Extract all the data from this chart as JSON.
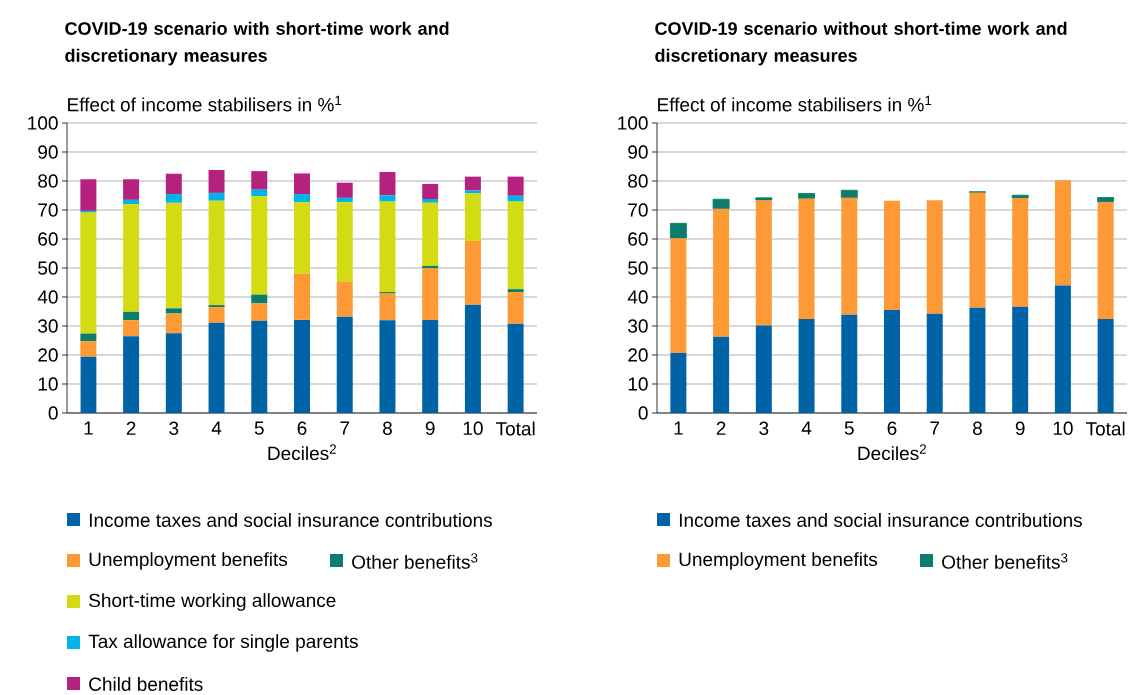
{
  "chart_data": [
    {
      "type": "bar",
      "stacked": true,
      "title": "COVID-19 scenario with short-time work and discretionary measures",
      "ylabel": "Effect of income stabilisers in %$^{1}$",
      "xlabel": "Deciles$^{2}$",
      "categories": [
        "1",
        "2",
        "3",
        "4",
        "5",
        "6",
        "7",
        "8",
        "9",
        "10",
        "Total"
      ],
      "ylim": [
        0,
        100
      ],
      "yticks": [
        0,
        10,
        20,
        30,
        40,
        50,
        60,
        70,
        80,
        90,
        100
      ],
      "grid": "y",
      "legend": "bottom",
      "series": [
        {
          "name": "Income taxes and social insurance contributions",
          "color": "#0063a6",
          "values": [
            19.4,
            26.5,
            27.5,
            31.1,
            31.8,
            32.1,
            33.2,
            32.0,
            32.1,
            37.3,
            30.8
          ]
        },
        {
          "name": "Unemployment benefits",
          "color": "#fd9a35",
          "values": [
            5.4,
            5.5,
            6.8,
            5.4,
            6.0,
            15.9,
            12.1,
            9.2,
            17.8,
            22.0,
            10.9
          ]
        },
        {
          "name": "Other benefits$^{3}$",
          "color": "#0a7d6b",
          "values": [
            2.6,
            2.9,
            1.8,
            0.7,
            3.0,
            0,
            0,
            0.5,
            0.8,
            0,
            1.0
          ]
        },
        {
          "name": "Short-time working allowance",
          "color": "#d3db12",
          "values": [
            41.7,
            37.1,
            36.4,
            36.0,
            34.0,
            24.7,
            27.4,
            31.2,
            21.8,
            16.4,
            30.2
          ]
        },
        {
          "name": "Tax allowance for single parents",
          "color": "#00b4e6",
          "values": [
            0.6,
            1.5,
            3.0,
            2.7,
            2.2,
            2.8,
            1.5,
            2.2,
            1.3,
            1.0,
            2.0
          ]
        },
        {
          "name": "Child benefits",
          "color": "#b5217f",
          "values": [
            10.9,
            7.1,
            7.0,
            7.9,
            6.4,
            7.1,
            5.2,
            8.0,
            5.2,
            4.8,
            6.6
          ]
        }
      ]
    },
    {
      "type": "bar",
      "stacked": true,
      "title": "COVID-19 scenario without short-time work and discretionary measures",
      "ylabel": "Effect of income stabilisers in %$^{1}$",
      "xlabel": "Deciles$^{2}$",
      "categories": [
        "1",
        "2",
        "3",
        "4",
        "5",
        "6",
        "7",
        "8",
        "9",
        "10",
        "Total"
      ],
      "ylim": [
        0,
        100
      ],
      "yticks": [
        0,
        10,
        20,
        30,
        40,
        50,
        60,
        70,
        80,
        90,
        100
      ],
      "grid": "y",
      "legend": "bottom",
      "series": [
        {
          "name": "Income taxes and social insurance contributions",
          "color": "#0063a6",
          "values": [
            20.7,
            26.3,
            30.2,
            32.4,
            33.9,
            35.5,
            34.2,
            36.3,
            36.6,
            44.0,
            32.4
          ]
        },
        {
          "name": "Unemployment benefits",
          "color": "#fd9a35",
          "values": [
            39.6,
            44.1,
            43.2,
            41.6,
            40.3,
            37.7,
            39.2,
            39.7,
            37.5,
            36.3,
            40.4
          ]
        },
        {
          "name": "Other benefits$^{3}$",
          "color": "#0a7d6b",
          "values": [
            5.1,
            3.3,
            0.8,
            1.7,
            2.6,
            0,
            0,
            0.3,
            1.0,
            0,
            1.5
          ]
        }
      ]
    }
  ]
}
